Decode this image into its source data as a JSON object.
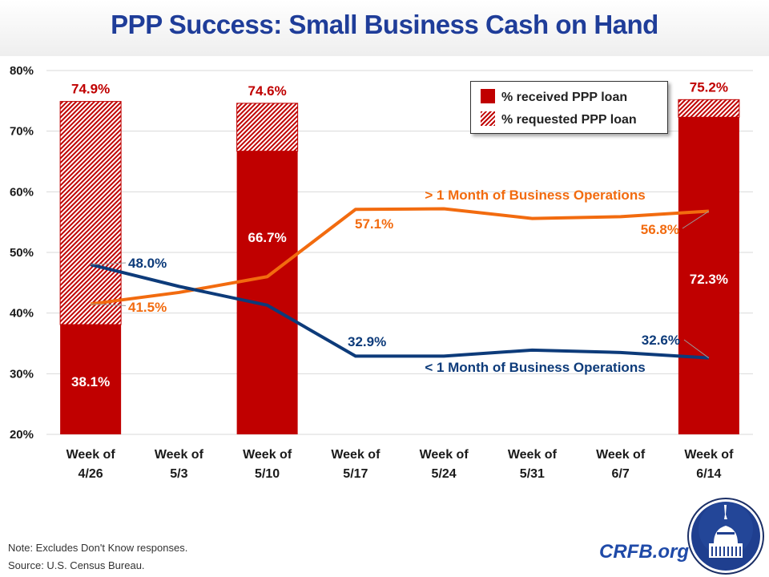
{
  "title": "PPP Success: Small Business Cash on Hand",
  "legend": {
    "received": "% received PPP loan",
    "requested": "% requested PPP loan"
  },
  "notes": {
    "note": "Note: Excludes Don't Know responses.",
    "source": "Source: U.S. Census Bureau."
  },
  "brand": {
    "site": "CRFB.org",
    "logo_icon": "capitol-dome-seal-icon"
  },
  "colors": {
    "bar": "#c00000",
    "orange_line": "#f26b0f",
    "blue_line": "#0d3b7a",
    "title": "#1f3d99",
    "grid": "#d9d9d9"
  },
  "chart_data": {
    "type": "bar",
    "title": "PPP Success: Small Business Cash on Hand",
    "xlabel": "",
    "ylabel": "",
    "ylim": [
      20,
      80
    ],
    "yticks": [
      20,
      30,
      40,
      50,
      60,
      70,
      80
    ],
    "ytick_labels": [
      "20%",
      "30%",
      "40%",
      "50%",
      "60%",
      "70%",
      "80%"
    ],
    "grid": true,
    "legend_position": "top-right",
    "categories": [
      [
        "Week of",
        "4/26"
      ],
      [
        "Week of",
        "5/3"
      ],
      [
        "Week of",
        "5/10"
      ],
      [
        "Week of",
        "5/17"
      ],
      [
        "Week of",
        "5/24"
      ],
      [
        "Week of",
        "5/31"
      ],
      [
        "Week of",
        "6/7"
      ],
      [
        "Week of",
        "6/14"
      ]
    ],
    "bars": {
      "received": {
        "name": "% received PPP loan",
        "values": [
          38.1,
          null,
          66.7,
          null,
          null,
          null,
          null,
          72.3
        ],
        "labels": [
          "38.1%",
          null,
          "66.7%",
          null,
          null,
          null,
          null,
          "72.3%"
        ]
      },
      "requested": {
        "name": "% requested PPP loan",
        "values": [
          74.9,
          null,
          74.6,
          null,
          null,
          null,
          null,
          75.2
        ],
        "labels": [
          "74.9%",
          null,
          "74.6%",
          null,
          null,
          null,
          null,
          "75.2%"
        ]
      }
    },
    "series": [
      {
        "name": "> 1 Month of Business Operations",
        "type": "line",
        "values": [
          41.5,
          43.4,
          46.0,
          57.1,
          57.2,
          55.6,
          55.9,
          56.8
        ],
        "point_labels": {
          "0": "41.5%",
          "3": "57.1%",
          "7": "56.8%"
        }
      },
      {
        "name": "< 1 Month of Business Operations",
        "type": "line",
        "values": [
          48.0,
          44.4,
          41.3,
          32.9,
          32.9,
          33.9,
          33.5,
          32.6
        ],
        "point_labels": {
          "0": "48.0%",
          "3": "32.9%",
          "7": "32.6%"
        }
      }
    ]
  }
}
